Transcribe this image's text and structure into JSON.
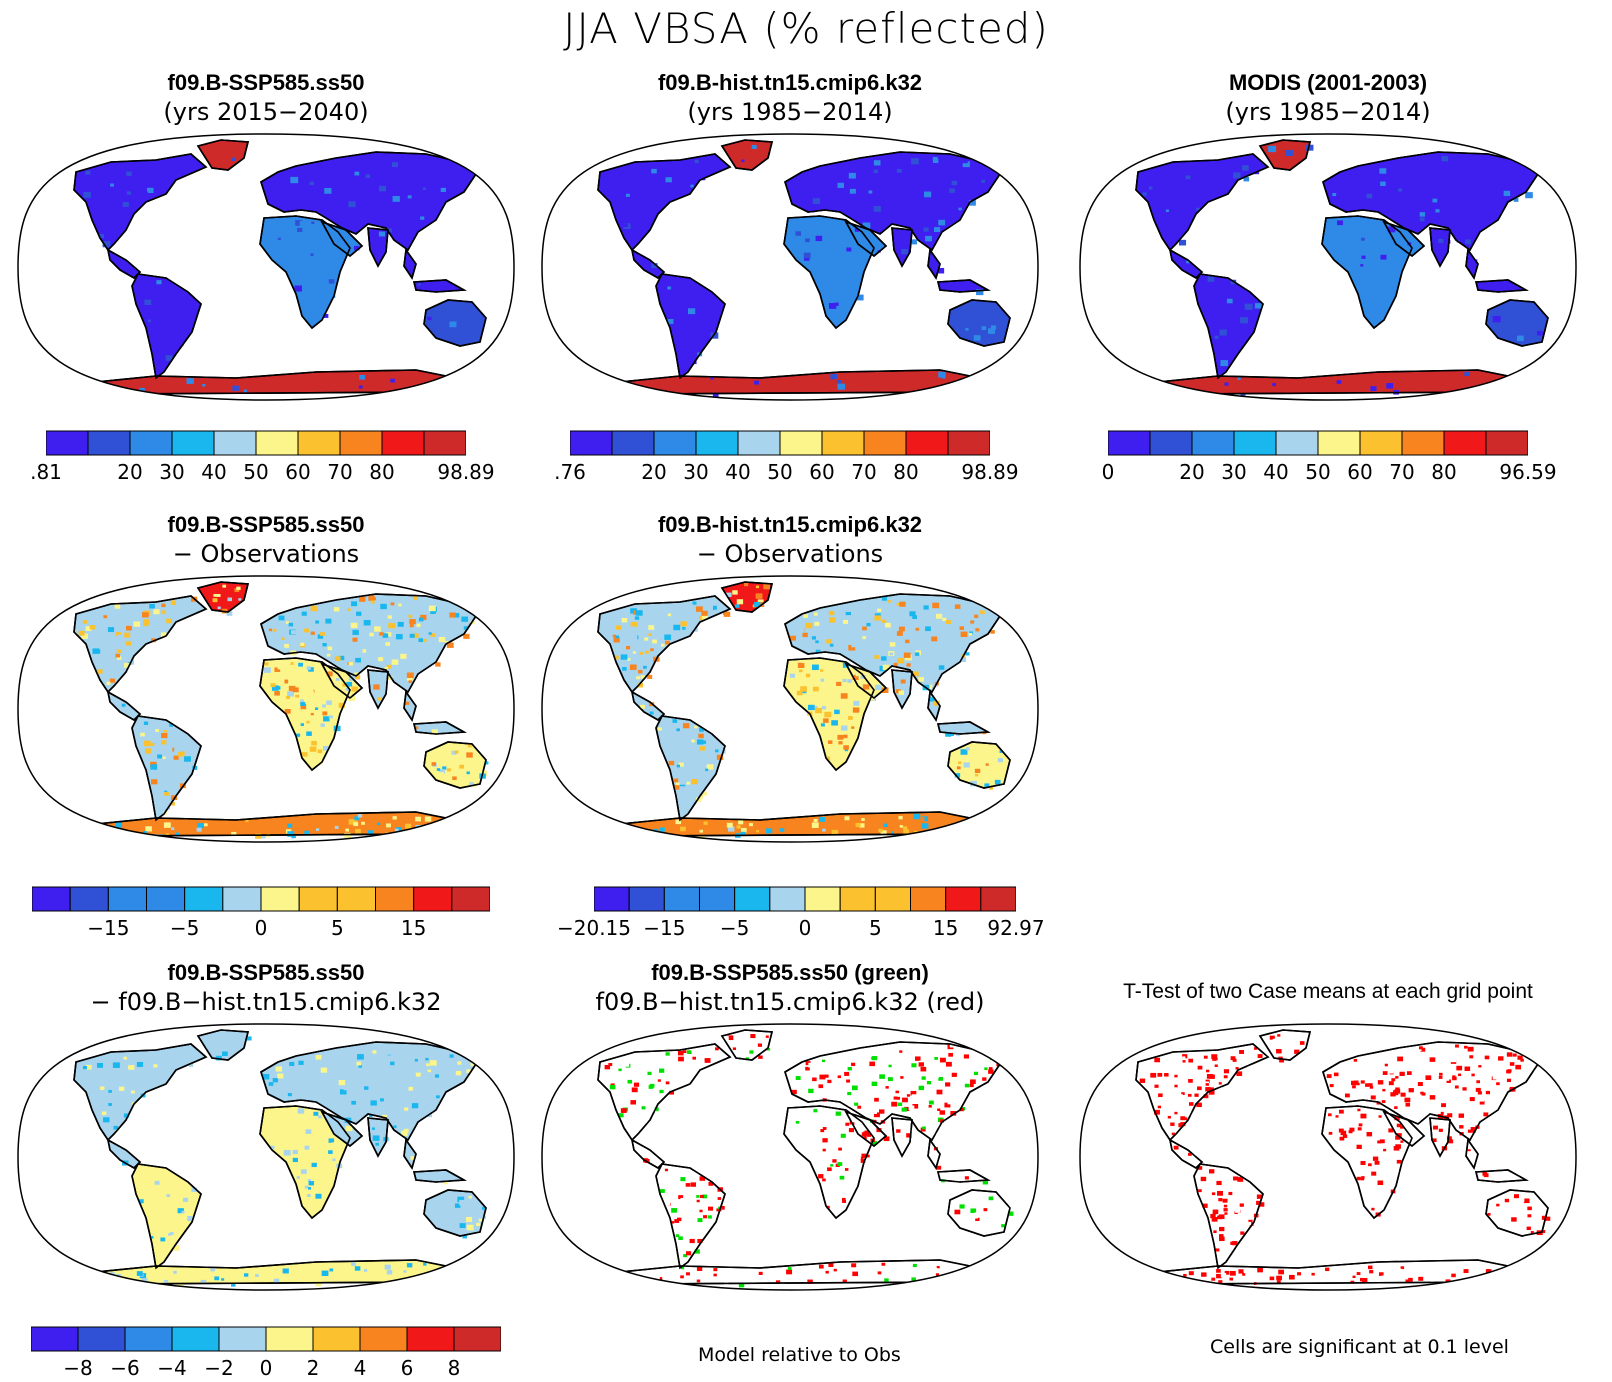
{
  "title": "JJA VBSA (% reflected)",
  "palette": [
    "#3f1fef",
    "#3050d6",
    "#2e8ae6",
    "#19b7ee",
    "#a8d4ee",
    "#fbf58c",
    "#fbc12e",
    "#f7841f",
    "#f01818",
    "#cf2a2a"
  ],
  "panels": [
    {
      "id": "p1",
      "title": "f09.B-SSP585.ss50",
      "subtitle": "(yrs 2015−2040)",
      "style": "abs",
      "ticks": [
        ".81",
        "",
        "20",
        "30",
        "40",
        "50",
        "60",
        "70",
        "80",
        "",
        "98.89"
      ]
    },
    {
      "id": "p2",
      "title": "f09.B-hist.tn15.cmip6.k32",
      "subtitle": "(yrs 1985−2014)",
      "style": "abs",
      "ticks": [
        ".76",
        "",
        "20",
        "30",
        "40",
        "50",
        "60",
        "70",
        "80",
        "",
        "98.89"
      ]
    },
    {
      "id": "p3",
      "title": "MODIS (2001-2003)",
      "subtitle": "(yrs 1985−2014)",
      "style": "abs",
      "ticks": [
        "0",
        "",
        "20",
        "30",
        "40",
        "50",
        "60",
        "70",
        "80",
        "",
        "96.59"
      ]
    },
    {
      "id": "p4",
      "title": "f09.B-SSP585.ss50",
      "subtitle": "− Observations",
      "style": "bias",
      "ticks": [
        "",
        "",
        "−15",
        "",
        "−5",
        "",
        "0",
        "",
        "5",
        "",
        "15",
        "",
        ""
      ]
    },
    {
      "id": "p5",
      "title": "f09.B-hist.tn15.cmip6.k32",
      "subtitle": "− Observations",
      "style": "bias",
      "ticks": [
        "−20.15",
        "",
        "−15",
        "",
        "−5",
        "",
        "0",
        "",
        "5",
        "",
        "15",
        "",
        "92.97"
      ]
    },
    {
      "id": "p6",
      "title": "f09.B-SSP585.ss50",
      "subtitle": "− f09.B−hist.tn15.cmip6.k32",
      "style": "diff",
      "ticks": [
        "",
        "−8",
        "−6",
        "−4",
        "−2",
        "0",
        "2",
        "4",
        "6",
        "8",
        ""
      ]
    },
    {
      "id": "p7",
      "title": "f09.B-SSP585.ss50 (green)",
      "subtitle": "f09.B−hist.tn15.cmip6.k32 (red)",
      "style": "greenred",
      "ticks": []
    },
    {
      "id": "p8",
      "title": "T-Test of two Case means at each grid point",
      "subtitle": "",
      "style": "ttest",
      "ticks": []
    }
  ],
  "footnotes": {
    "model_relative": "Model relative to Obs",
    "cells_significant": "Cells are significant at 0.1 level"
  }
}
